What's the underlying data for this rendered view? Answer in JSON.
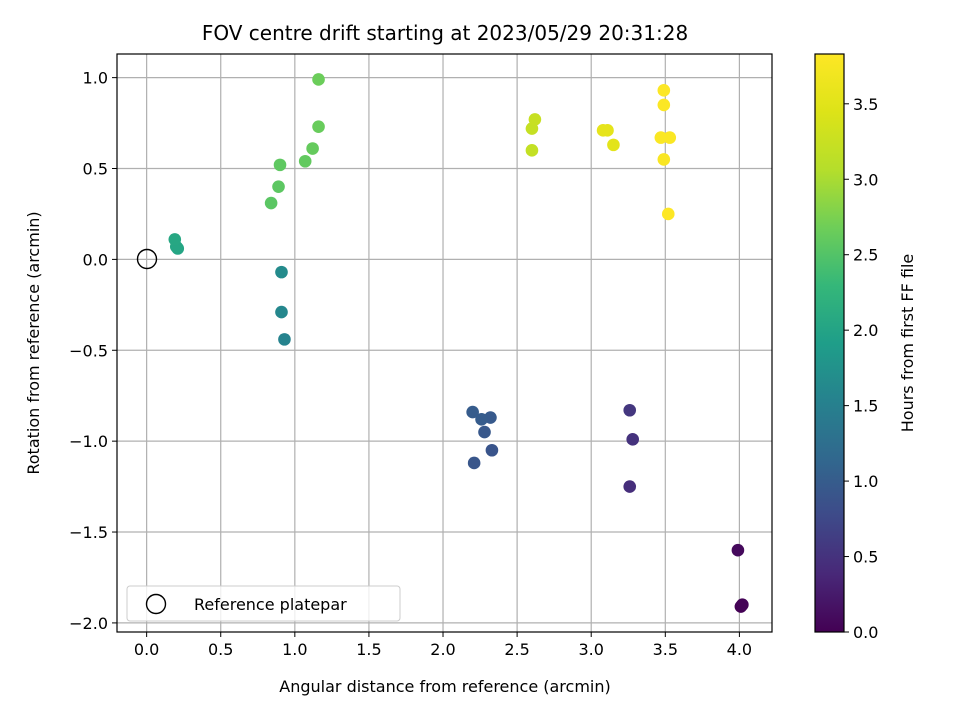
{
  "chart_data": {
    "type": "scatter",
    "title": "FOV centre drift starting at 2023/05/29 20:31:28",
    "xlabel": "Angular distance from reference (arcmin)",
    "ylabel": "Rotation from reference (arcmin)",
    "xlim": [
      -0.2,
      4.22
    ],
    "ylim": [
      -2.05,
      1.13
    ],
    "x_ticks": [
      0.0,
      0.5,
      1.0,
      1.5,
      2.0,
      2.5,
      3.0,
      3.5,
      4.0
    ],
    "x_tick_labels": [
      "0.0",
      "0.5",
      "1.0",
      "1.5",
      "2.0",
      "2.5",
      "3.0",
      "3.5",
      "4.0"
    ],
    "y_ticks": [
      1.0,
      0.5,
      0.0,
      -0.5,
      -1.0,
      -1.5,
      -2.0
    ],
    "y_tick_labels": [
      "1.0",
      "0.5",
      "0.0",
      "−0.5",
      "−1.0",
      "−1.5",
      "−2.0"
    ],
    "grid": true,
    "colormap": "viridis",
    "colorbar": {
      "label": "Hours from first FF file",
      "range": [
        0.0,
        3.83
      ],
      "ticks": [
        0.0,
        0.5,
        1.0,
        1.5,
        2.0,
        2.5,
        3.0,
        3.5
      ],
      "tick_labels": [
        "0.0",
        "0.5",
        "1.0",
        "1.5",
        "2.0",
        "2.5",
        "3.0",
        "3.5"
      ]
    },
    "reference_point": {
      "x": 0.0,
      "y": 0.0
    },
    "legend": {
      "position": "lower-left",
      "entries": [
        "Reference platepar"
      ]
    },
    "points": [
      {
        "x": 4.01,
        "y": -1.91,
        "hours": 0.0
      },
      {
        "x": 4.02,
        "y": -1.9,
        "hours": 0.02
      },
      {
        "x": 3.99,
        "y": -1.6,
        "hours": 0.08
      },
      {
        "x": 3.26,
        "y": -1.25,
        "hours": 0.45
      },
      {
        "x": 3.28,
        "y": -0.99,
        "hours": 0.5
      },
      {
        "x": 3.26,
        "y": -0.83,
        "hours": 0.55
      },
      {
        "x": 2.33,
        "y": -1.05,
        "hours": 0.9
      },
      {
        "x": 2.21,
        "y": -1.12,
        "hours": 0.92
      },
      {
        "x": 2.28,
        "y": -0.95,
        "hours": 0.95
      },
      {
        "x": 2.32,
        "y": -0.87,
        "hours": 0.97
      },
      {
        "x": 2.26,
        "y": -0.88,
        "hours": 0.99
      },
      {
        "x": 2.2,
        "y": -0.84,
        "hours": 1.0
      },
      {
        "x": 0.93,
        "y": -0.44,
        "hours": 1.55
      },
      {
        "x": 0.91,
        "y": -0.29,
        "hours": 1.6
      },
      {
        "x": 0.91,
        "y": -0.07,
        "hours": 1.65
      },
      {
        "x": 0.21,
        "y": 0.06,
        "hours": 2.02
      },
      {
        "x": 0.2,
        "y": 0.07,
        "hours": 2.04
      },
      {
        "x": 0.19,
        "y": 0.11,
        "hours": 2.06
      },
      {
        "x": 0.84,
        "y": 0.31,
        "hours": 2.55
      },
      {
        "x": 0.89,
        "y": 0.4,
        "hours": 2.57
      },
      {
        "x": 0.9,
        "y": 0.52,
        "hours": 2.58
      },
      {
        "x": 1.07,
        "y": 0.54,
        "hours": 2.6
      },
      {
        "x": 1.12,
        "y": 0.61,
        "hours": 2.62
      },
      {
        "x": 1.16,
        "y": 0.73,
        "hours": 2.64
      },
      {
        "x": 1.16,
        "y": 0.99,
        "hours": 2.66
      },
      {
        "x": 2.6,
        "y": 0.6,
        "hours": 3.2
      },
      {
        "x": 2.6,
        "y": 0.72,
        "hours": 3.22
      },
      {
        "x": 2.62,
        "y": 0.77,
        "hours": 3.24
      },
      {
        "x": 3.15,
        "y": 0.63,
        "hours": 3.52
      },
      {
        "x": 3.11,
        "y": 0.71,
        "hours": 3.54
      },
      {
        "x": 3.08,
        "y": 0.71,
        "hours": 3.56
      },
      {
        "x": 3.49,
        "y": 0.55,
        "hours": 3.78
      },
      {
        "x": 3.47,
        "y": 0.67,
        "hours": 3.79
      },
      {
        "x": 3.53,
        "y": 0.67,
        "hours": 3.8
      },
      {
        "x": 3.49,
        "y": 0.85,
        "hours": 3.81
      },
      {
        "x": 3.49,
        "y": 0.93,
        "hours": 3.82
      },
      {
        "x": 3.52,
        "y": 0.25,
        "hours": 3.83
      }
    ]
  }
}
